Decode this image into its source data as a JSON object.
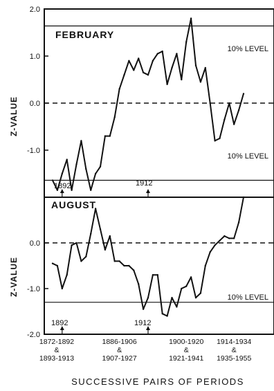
{
  "figure": {
    "xlabel": "SUCCESSIVE PAIRS OF PERIODS",
    "x_tick_labels": [
      {
        "line1": "1872-1892",
        "line2": "&",
        "line3": "1893-1913"
      },
      {
        "line1": "1886-1906",
        "line2": "&",
        "line3": "1907-1927"
      },
      {
        "line1": "1900-1920",
        "line2": "&",
        "line3": "1921-1941"
      },
      {
        "line1": "1914-1934",
        "line2": "&",
        "line3": "1935-1955"
      }
    ],
    "line_color": "#111111",
    "background": "#ffffff"
  },
  "chart_data": [
    {
      "type": "line",
      "title": "FEBRUARY",
      "ylabel": "Z-VALUE",
      "ylim": [
        -2.0,
        2.0
      ],
      "y_ticks": [
        "2.0",
        "1.0",
        "0.0",
        "-1.0"
      ],
      "xlim": [
        0,
        42
      ],
      "reference_lines": [
        {
          "y": 1.64,
          "label": "10% LEVEL"
        },
        {
          "y": 0.0,
          "style": "dashed"
        },
        {
          "y": -1.64,
          "label": "10% LEVEL"
        }
      ],
      "markers": [
        {
          "x": 2,
          "label": "1892"
        },
        {
          "x": 20,
          "label": "1912"
        }
      ],
      "series": [
        {
          "x": [
            0,
            1,
            2,
            3,
            4,
            5,
            6,
            7,
            8,
            9,
            10,
            11,
            12,
            13,
            14,
            15,
            16,
            17,
            18,
            19,
            20,
            21,
            22,
            23,
            24,
            25,
            26,
            27,
            28,
            29,
            30,
            31,
            32,
            33,
            34,
            35,
            36,
            37,
            38,
            39,
            40
          ],
          "values": [
            -1.64,
            -1.85,
            -1.5,
            -1.2,
            -1.85,
            -1.3,
            -0.8,
            -1.4,
            -1.85,
            -1.5,
            -1.35,
            -0.7,
            -0.7,
            -0.3,
            0.3,
            0.6,
            0.9,
            0.7,
            0.95,
            0.65,
            0.6,
            0.9,
            1.05,
            1.1,
            0.4,
            0.75,
            1.05,
            0.5,
            1.3,
            1.8,
            0.8,
            0.45,
            0.75,
            0.0,
            -0.8,
            -0.75,
            -0.35,
            0.0,
            -0.45,
            -0.15,
            0.2
          ]
        }
      ]
    },
    {
      "type": "line",
      "title": "AUGUST",
      "ylabel": "Z-VALUE",
      "ylim": [
        -2.0,
        1.0
      ],
      "y_ticks": [
        "0.0",
        "-1.0",
        "-2.0"
      ],
      "xlim": [
        0,
        42
      ],
      "reference_lines": [
        {
          "y": 0.0,
          "style": "dashed"
        },
        {
          "y": -1.3,
          "label": "10% LEVEL"
        }
      ],
      "markers": [
        {
          "x": 2,
          "label": "1892"
        },
        {
          "x": 20,
          "label": "1912"
        }
      ],
      "series": [
        {
          "x": [
            0,
            1,
            2,
            3,
            4,
            5,
            6,
            7,
            8,
            9,
            10,
            11,
            12,
            13,
            14,
            15,
            16,
            17,
            18,
            19,
            20,
            21,
            22,
            23,
            24,
            25,
            26,
            27,
            28,
            29,
            30,
            31,
            32,
            33,
            34,
            35,
            36,
            37,
            38,
            39,
            40
          ],
          "values": [
            -0.45,
            -0.5,
            -1.0,
            -0.7,
            -0.05,
            0.0,
            -0.4,
            -0.3,
            0.2,
            0.75,
            0.3,
            -0.15,
            0.15,
            -0.4,
            -0.4,
            -0.5,
            -0.5,
            -0.6,
            -0.9,
            -1.45,
            -1.2,
            -0.7,
            -0.7,
            -1.55,
            -1.6,
            -1.2,
            -1.4,
            -1.0,
            -0.95,
            -0.75,
            -1.2,
            -1.1,
            -0.5,
            -0.2,
            -0.05,
            0.05,
            0.15,
            0.1,
            0.1,
            0.45,
            1.0
          ]
        }
      ]
    }
  ]
}
